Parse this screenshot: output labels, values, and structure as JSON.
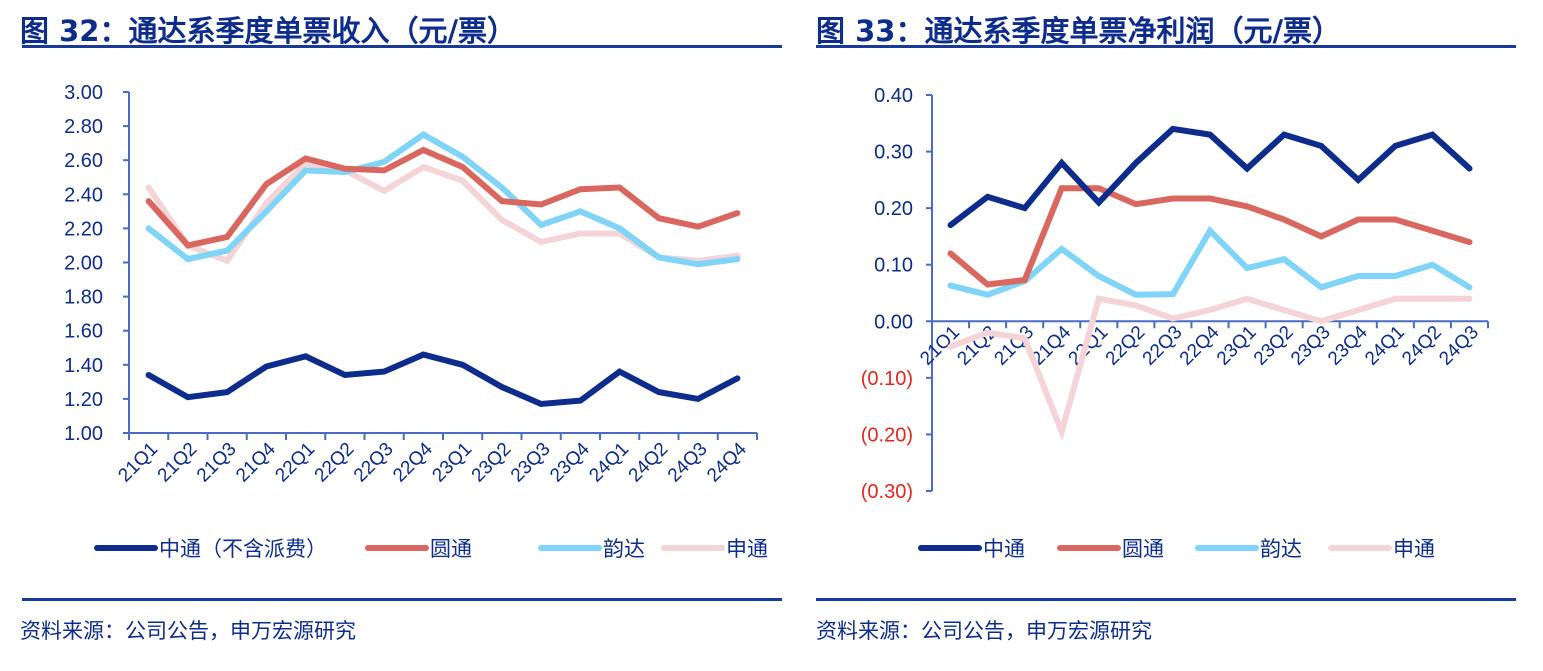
{
  "chart_data": [
    {
      "type": "line",
      "title": "图 32：通达系季度单票收入（元/票）",
      "xlabel": "",
      "ylabel": "",
      "ylim": [
        1.0,
        3.0
      ],
      "yticks": [
        "3.00",
        "2.80",
        "2.60",
        "2.40",
        "2.20",
        "2.00",
        "1.80",
        "1.60",
        "1.40",
        "1.20",
        "1.00"
      ],
      "ytick_values": [
        3.0,
        2.8,
        2.6,
        2.4,
        2.2,
        2.0,
        1.8,
        1.6,
        1.4,
        1.2,
        1.0
      ],
      "categories": [
        "21Q1",
        "21Q2",
        "21Q3",
        "21Q4",
        "22Q1",
        "22Q2",
        "22Q3",
        "22Q4",
        "23Q1",
        "23Q2",
        "23Q3",
        "23Q4",
        "24Q1",
        "24Q2",
        "24Q3",
        "24Q4"
      ],
      "grid": false,
      "legend_position": "bottom",
      "series": [
        {
          "name": "中通（不含派费）",
          "color": "#0d2c8c",
          "values": [
            1.34,
            1.21,
            1.24,
            1.39,
            1.45,
            1.34,
            1.36,
            1.46,
            1.4,
            1.27,
            1.17,
            1.19,
            1.36,
            1.24,
            1.2,
            1.32
          ]
        },
        {
          "name": "圆通",
          "color": "#d9675f",
          "values": [
            2.36,
            2.1,
            2.15,
            2.46,
            2.61,
            2.55,
            2.54,
            2.66,
            2.56,
            2.36,
            2.34,
            2.43,
            2.44,
            2.26,
            2.21,
            2.29
          ]
        },
        {
          "name": "韵达",
          "color": "#80d4f8",
          "values": [
            2.2,
            2.02,
            2.07,
            2.3,
            2.54,
            2.53,
            2.59,
            2.75,
            2.62,
            2.44,
            2.22,
            2.3,
            2.2,
            2.03,
            1.99,
            2.02
          ]
        },
        {
          "name": "申通",
          "color": "#f4d4d6",
          "values": [
            2.44,
            2.1,
            2.01,
            2.35,
            2.58,
            2.54,
            2.42,
            2.56,
            2.48,
            2.25,
            2.12,
            2.17,
            2.17,
            2.03,
            2.01,
            2.04
          ]
        }
      ],
      "source": "资料来源：公司公告，申万宏源研究"
    },
    {
      "type": "line",
      "title": "图 33：通达系季度单票净利润（元/票）",
      "xlabel": "",
      "ylabel": "",
      "ylim": [
        -0.3,
        0.4
      ],
      "yticks": [
        "0.40",
        "0.30",
        "0.20",
        "0.10",
        "0.00",
        "(0.10)",
        "(0.20)",
        "(0.30)"
      ],
      "ytick_values": [
        0.4,
        0.3,
        0.2,
        0.1,
        0.0,
        -0.1,
        -0.2,
        -0.3
      ],
      "categories": [
        "21Q1",
        "21Q2",
        "21Q3",
        "21Q4",
        "22Q1",
        "22Q2",
        "22Q3",
        "22Q4",
        "23Q1",
        "23Q2",
        "23Q3",
        "23Q4",
        "24Q1",
        "24Q2",
        "24Q3"
      ],
      "grid": false,
      "legend_position": "bottom",
      "series": [
        {
          "name": "中通",
          "color": "#0d2c8c",
          "values": [
            0.17,
            0.22,
            0.2,
            0.28,
            0.21,
            0.28,
            0.34,
            0.33,
            0.27,
            0.33,
            0.31,
            0.25,
            0.31,
            0.33,
            0.27
          ]
        },
        {
          "name": "圆通",
          "color": "#d9675f",
          "values": [
            0.12,
            0.065,
            0.073,
            0.235,
            0.235,
            0.207,
            0.217,
            0.217,
            0.203,
            0.18,
            0.15,
            0.18,
            0.18,
            0.16,
            0.14
          ]
        },
        {
          "name": "韵达",
          "color": "#80d4f8",
          "values": [
            0.063,
            0.047,
            0.071,
            0.128,
            0.08,
            0.047,
            0.048,
            0.16,
            0.094,
            0.11,
            0.06,
            0.08,
            0.08,
            0.1,
            0.06
          ]
        },
        {
          "name": "申通",
          "color": "#f4d4d6",
          "values": [
            -0.045,
            -0.02,
            -0.03,
            -0.195,
            0.04,
            0.028,
            0.005,
            0.02,
            0.04,
            0.02,
            0.0,
            0.02,
            0.04,
            0.04,
            0.04
          ]
        }
      ],
      "source": "资料来源：公司公告，申万宏源研究"
    }
  ],
  "colors": {
    "title": "#0d2c8c",
    "axis": "#4a6cc4",
    "negative_tick": "#e0281e"
  }
}
